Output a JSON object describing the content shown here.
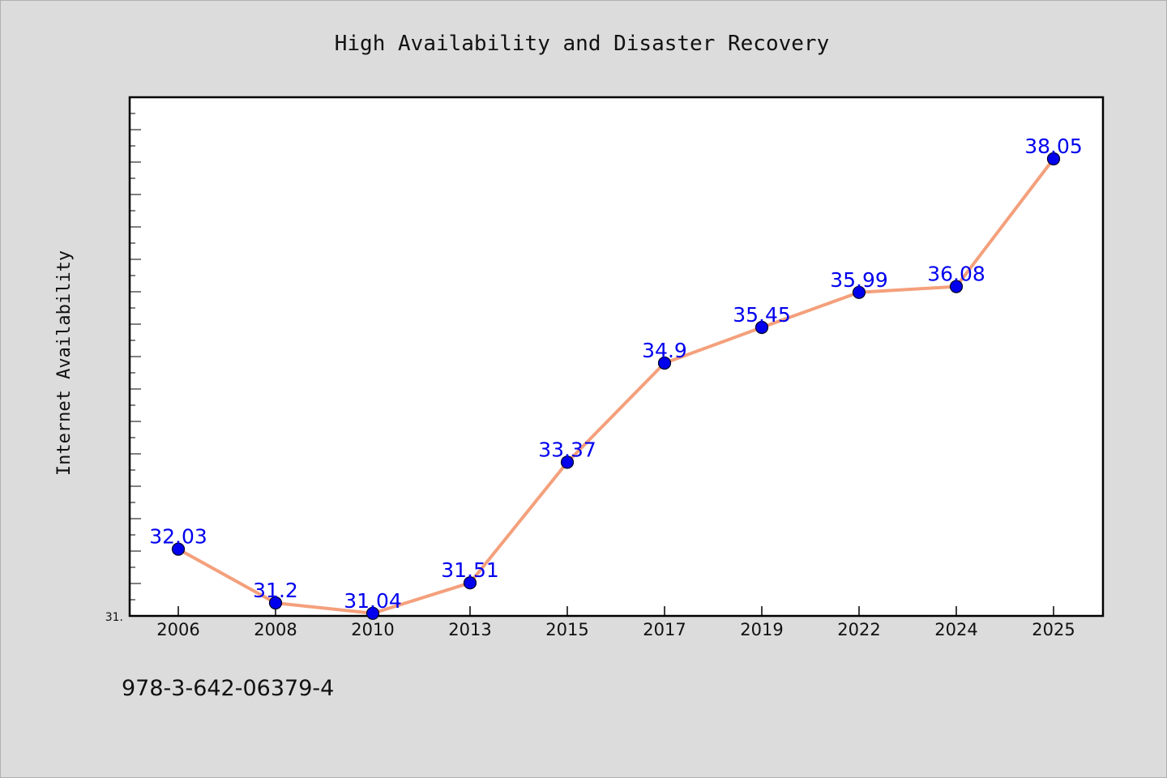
{
  "chart_data": {
    "type": "line",
    "title": "High Availability and Disaster Recovery",
    "xlabel": "",
    "ylabel": "Internet Availability",
    "categories": [
      "2006",
      "2008",
      "2010",
      "2013",
      "2015",
      "2017",
      "2019",
      "2022",
      "2024",
      "2025"
    ],
    "series": [
      {
        "values": [
          32.03,
          31.2,
          31.04,
          31.51,
          33.37,
          34.9,
          35.45,
          35.99,
          36.08,
          38.05
        ],
        "labels": [
          "32.03",
          "31.2",
          "31.04",
          "31.51",
          "33.37",
          "34.9",
          "35.45",
          "35.99",
          "36.08",
          "38.05"
        ]
      }
    ],
    "ylim": [
      31.0,
      39.0
    ],
    "y_tick_label": "31.",
    "grid": false,
    "line_color": "#f4a07c",
    "marker_color": "#0000ee"
  },
  "footnote": "978-3-642-06379-4"
}
